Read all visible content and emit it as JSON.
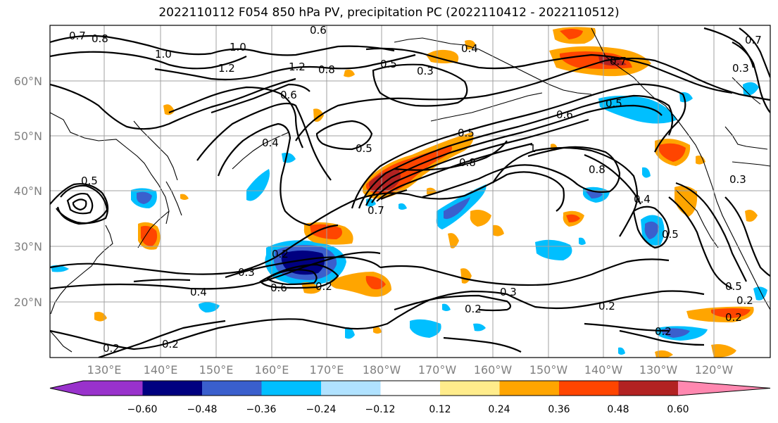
{
  "title": "2022110112 F054 850 hPa PV, precipitation PC (2022110412 - 2022110512)",
  "map": {
    "lat_labels": [
      "60°N",
      "50°N",
      "40°N",
      "30°N",
      "20°N"
    ],
    "lon_labels": [
      "130°E",
      "140°E",
      "150°E",
      "160°E",
      "170°E",
      "180°W",
      "170°W",
      "160°W",
      "150°W",
      "140°W",
      "130°W",
      "120°W"
    ],
    "contour_labels": [
      "0.7",
      "0.8",
      "1.0",
      "1.0",
      "1.2",
      "1.2",
      "0.6",
      "0.8",
      "0.4",
      "0.3",
      "0.5",
      "0.7",
      "0.4",
      "0.5",
      "0.5",
      "0.8",
      "0.7",
      "0.6",
      "1",
      "0.8",
      "0.5",
      "0.5",
      "0.4",
      "0.5",
      "0.2",
      "0.3",
      "0.4",
      "0.6",
      "0.2",
      "0.3",
      "0.2",
      "0.2",
      "0.2",
      "0.2",
      "0.2",
      "0.2",
      "0.3",
      "0.3",
      "0.5",
      "0.2",
      "0.6",
      "0.7"
    ]
  },
  "colorbar": {
    "ticks": [
      "−0.60",
      "−0.48",
      "−0.36",
      "−0.24",
      "−0.12",
      "0.12",
      "0.24",
      "0.36",
      "0.48",
      "0.60"
    ],
    "colors": [
      "#9932cc",
      "#000080",
      "#3a5fcd",
      "#00bfff",
      "#b0e2ff",
      "#ffffff",
      "#ffec8b",
      "#ffa500",
      "#ff4500",
      "#b22222",
      "#ff88b0"
    ]
  }
}
